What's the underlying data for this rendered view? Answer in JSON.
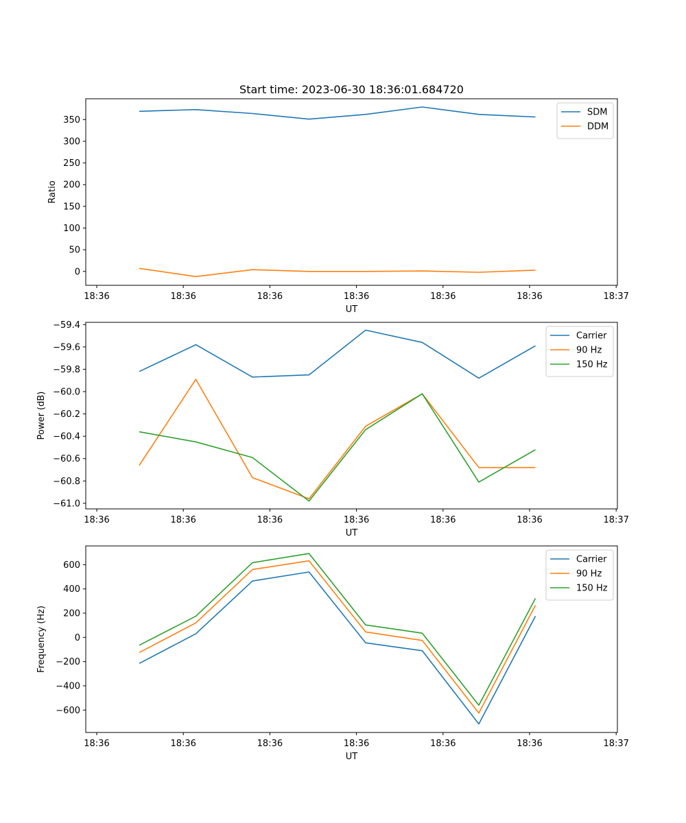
{
  "figure_title": "Start time: 2023-06-30 18:36:01.684720",
  "chart_data": [
    {
      "type": "line",
      "title": "Start time: 2023-06-30 18:36:01.684720",
      "xlabel": "UT",
      "ylabel": "Ratio",
      "x_tick_labels": [
        "18:36",
        "18:36",
        "18:36",
        "18:36",
        "18:36",
        "18:36",
        "18:37"
      ],
      "y_ticks": [
        0,
        50,
        100,
        150,
        200,
        250,
        300,
        350
      ],
      "ylim": [
        -32,
        398
      ],
      "legend": "upper-right",
      "series": [
        {
          "name": "SDM",
          "color": "#1f77b4",
          "values": [
            369,
            373,
            364,
            351,
            362,
            379,
            362,
            356
          ]
        },
        {
          "name": "DDM",
          "color": "#ff7f0e",
          "values": [
            7,
            -12,
            4,
            0,
            0,
            1,
            -2,
            3
          ]
        }
      ]
    },
    {
      "type": "line",
      "xlabel": "UT",
      "ylabel": "Power (dB)",
      "x_tick_labels": [
        "18:36",
        "18:36",
        "18:36",
        "18:36",
        "18:36",
        "18:36",
        "18:37"
      ],
      "y_ticks": [
        -61.0,
        -60.8,
        -60.6,
        -60.4,
        -60.2,
        -60.0,
        -59.8,
        -59.6,
        -59.4
      ],
      "y_tick_labels": [
        "−61.0",
        "−60.8",
        "−60.6",
        "−60.4",
        "−60.2",
        "−60.0",
        "−59.8",
        "−59.6",
        "−59.4"
      ],
      "ylim": [
        -61.05,
        -59.38
      ],
      "legend": "upper-right",
      "series": [
        {
          "name": "Carrier",
          "color": "#1f77b4",
          "values": [
            -59.82,
            -59.58,
            -59.87,
            -59.85,
            -59.45,
            -59.56,
            -59.88,
            -59.59
          ]
        },
        {
          "name": "90 Hz",
          "color": "#ff7f0e",
          "values": [
            -60.66,
            -59.89,
            -60.77,
            -60.96,
            -60.31,
            -60.02,
            -60.68,
            -60.68
          ]
        },
        {
          "name": "150 Hz",
          "color": "#2ca02c",
          "values": [
            -60.36,
            -60.45,
            -60.59,
            -60.98,
            -60.34,
            -60.02,
            -60.81,
            -60.52
          ]
        }
      ]
    },
    {
      "type": "line",
      "xlabel": "UT",
      "ylabel": "Frequency (Hz)",
      "x_tick_labels": [
        "18:36",
        "18:36",
        "18:36",
        "18:36",
        "18:36",
        "18:36",
        "18:37"
      ],
      "y_ticks": [
        -600,
        -400,
        -200,
        0,
        200,
        400,
        600
      ],
      "y_tick_labels": [
        "−600",
        "−400",
        "−200",
        "0",
        "200",
        "400",
        "600"
      ],
      "ylim": [
        -785,
        755
      ],
      "legend": "upper-right",
      "series": [
        {
          "name": "Carrier",
          "color": "#1f77b4",
          "values": [
            -215,
            30,
            465,
            540,
            -45,
            -110,
            -715,
            175
          ]
        },
        {
          "name": "90 Hz",
          "color": "#ff7f0e",
          "values": [
            -125,
            120,
            560,
            632,
            45,
            -25,
            -625,
            265
          ]
        },
        {
          "name": "150 Hz",
          "color": "#2ca02c",
          "values": [
            -65,
            175,
            617,
            692,
            103,
            35,
            -560,
            322
          ]
        }
      ]
    }
  ]
}
